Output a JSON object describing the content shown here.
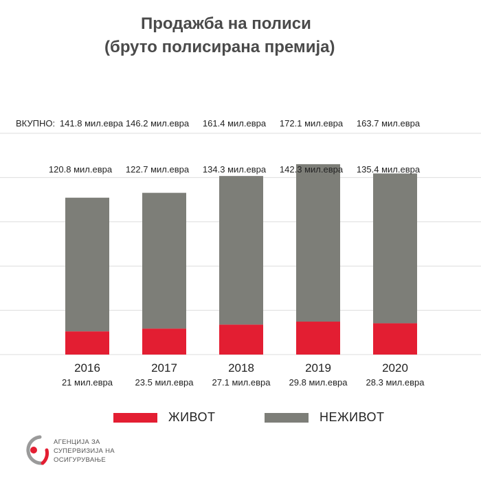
{
  "title": {
    "line1": "Продажба на полиси",
    "line2": "(бруто полисирана премија)"
  },
  "total_prefix": "ВКУПНО:",
  "chart_data": {
    "type": "bar",
    "stacked": true,
    "categories": [
      "2016",
      "2017",
      "2018",
      "2019",
      "2020"
    ],
    "series": [
      {
        "name": "ЖИВОТ",
        "values": [
          21,
          23.5,
          27.1,
          29.8,
          28.3
        ],
        "color": "#e31e32",
        "labels": [
          "21 мил.евра",
          "23.5 мил.евра",
          "27.1 мил.евра",
          "29.8 мил.евра",
          "28.3 мил.евра"
        ]
      },
      {
        "name": "НЕЖИВОТ",
        "values": [
          120.8,
          122.7,
          134.3,
          142.3,
          135.4
        ],
        "color": "#7d7e78",
        "labels": [
          "120.8 мил.евра",
          "122.7 мил.евра",
          "134.3 мил.евра",
          "142.3 мил.евра",
          "135.4 мил.евра"
        ]
      }
    ],
    "totals": [
      141.8,
      146.2,
      161.4,
      172.1,
      163.7
    ],
    "total_labels": [
      "141.8 мил.евра",
      "146.2 мил.евра",
      "161.4 мил.евра",
      "172.1 мил.евра",
      "163.7 мил.евра"
    ],
    "ylim": [
      0,
      200
    ],
    "grid": true,
    "legend_position": "bottom"
  },
  "logo": {
    "lines": [
      "АГЕНЦИЈА ЗА",
      "СУПЕРВИЗИЈА НА",
      "ОСИГУРУВАЊЕ"
    ],
    "colors": {
      "ring": "#9a9a9a",
      "accent": "#e31e32"
    }
  }
}
